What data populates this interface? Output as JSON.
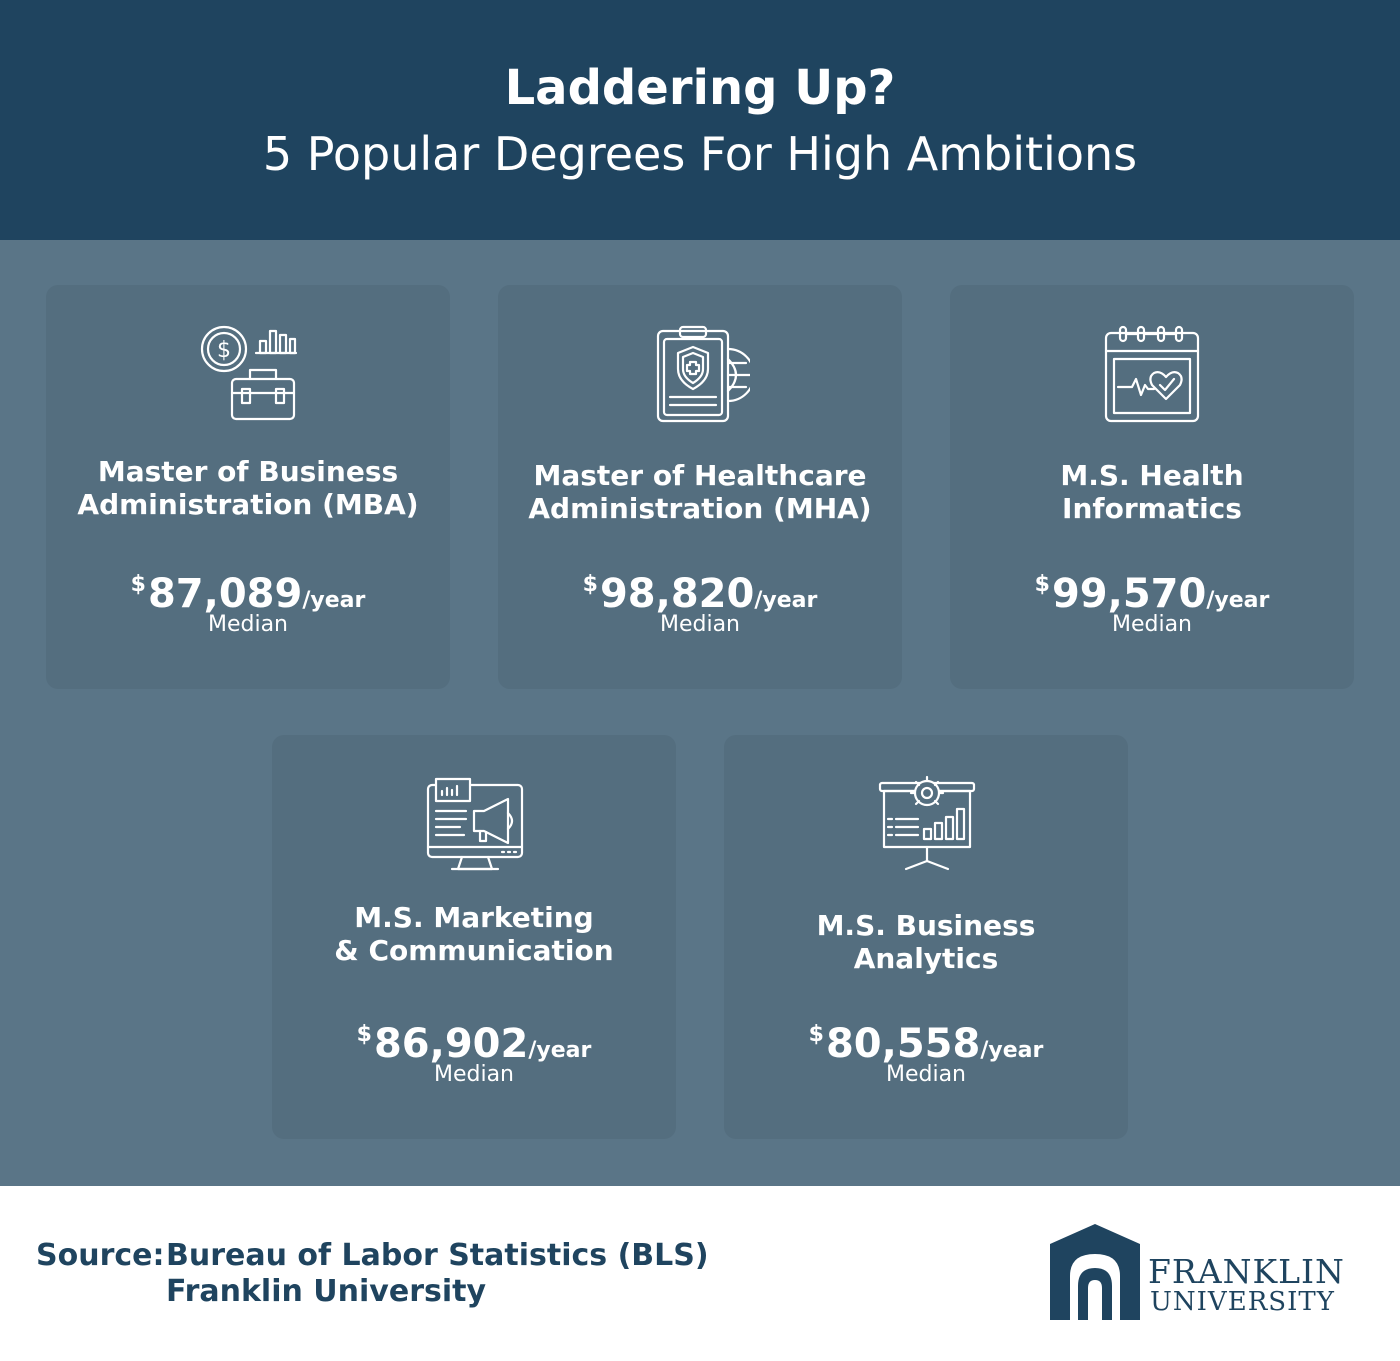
{
  "header": {
    "title": "Laddering Up?",
    "subtitle": "5 Popular Degrees For High Ambitions"
  },
  "degrees": [
    {
      "name_line1": "Master of Business",
      "name_line2": "Administration (MBA)",
      "currency": "$",
      "amount": "87,089",
      "per": "/year",
      "note": "Median",
      "icon": "briefcase-money-icon"
    },
    {
      "name_line1": "Master of Healthcare",
      "name_line2": "Administration (MHA)",
      "currency": "$",
      "amount": "98,820",
      "per": "/year",
      "note": "Median",
      "icon": "medical-clipboard-icon"
    },
    {
      "name_line1": "M.S. Health",
      "name_line2": "Informatics",
      "currency": "$",
      "amount": "99,570",
      "per": "/year",
      "note": "Median",
      "icon": "health-calendar-icon"
    },
    {
      "name_line1": "M.S. Marketing",
      "name_line2": "& Communication",
      "currency": "$",
      "amount": "86,902",
      "per": "/year",
      "note": "Median",
      "icon": "marketing-monitor-icon"
    },
    {
      "name_line1": "M.S. Business",
      "name_line2": "Analytics",
      "currency": "$",
      "amount": "80,558",
      "per": "/year",
      "note": "Median",
      "icon": "analytics-board-icon"
    }
  ],
  "footer": {
    "source_label": "Source:",
    "source_line1": "Bureau of Labor Statistics (BLS)",
    "source_line2": "Franklin University",
    "logo_line1": "FRANKLIN",
    "logo_line2": "UNIVERSITY"
  },
  "colors": {
    "header_bg": "#1f445f",
    "main_bg": "#5a7587",
    "card_bg": "#546e7f",
    "brand": "#1f445f"
  }
}
